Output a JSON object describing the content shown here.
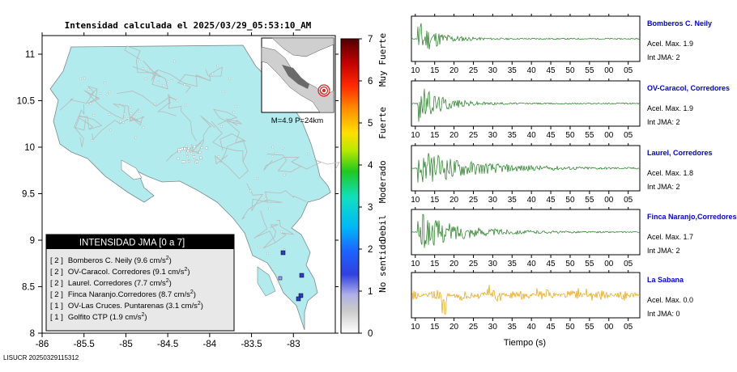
{
  "map": {
    "title": "Intensidad calculada el 2025/03/29_05:53:10_AM",
    "x_ticks": [
      "-86",
      "-85.5",
      "-85",
      "-84.5",
      "-84",
      "-83.5",
      "-83"
    ],
    "x_tick_values": [
      -86,
      -85.5,
      -85,
      -84.5,
      -84,
      -83.5,
      -83
    ],
    "y_ticks": [
      "11",
      "10.5",
      "10",
      "9.5",
      "9",
      "8.5",
      "8"
    ],
    "y_tick_values": [
      11,
      10.5,
      10,
      9.5,
      9,
      8.5,
      8
    ],
    "xlim": [
      -86,
      -82.5
    ],
    "ylim": [
      8,
      11.2
    ],
    "inset_caption": "M=4.9 P=24km",
    "land_color": "#b2ebed",
    "footer": "LISUCR 20250329115312"
  },
  "colorbar": {
    "ticks": [
      "0",
      "1",
      "2",
      "3",
      "4",
      "5",
      "6",
      "7"
    ],
    "categories": [
      "No sentido",
      "Debil",
      "Moderado",
      "Fuerte",
      "Muy Fuerte"
    ]
  },
  "legend": {
    "title": "INTENSIDAD JMA [0 a 7]",
    "items": [
      {
        "level": "[ 2 ]",
        "text": "Bomberos C. Neily (9.6 cm/s",
        "unit_sup": "2",
        "close": ")"
      },
      {
        "level": "[ 2 ]",
        "text": "OV-Caracol. Corredores (9.1 cm/s",
        "unit_sup": "2",
        "close": ")"
      },
      {
        "level": "[ 2 ]",
        "text": "Laurel. Corredores (7.7 cm/s",
        "unit_sup": "2",
        "close": ")"
      },
      {
        "level": "[ 2 ]",
        "text": "Finca Naranjo.Corredores (8.7 cm/s",
        "unit_sup": "2",
        "close": ")"
      },
      {
        "level": "[ 1 ]",
        "text": "OV-Las Cruces. Puntarenas (3.1 cm/s",
        "unit_sup": "2",
        "close": ")"
      },
      {
        "level": "[ 1 ]",
        "text": "Golfito CTP (1.9 cm/s",
        "unit_sup": "2",
        "close": ")"
      }
    ]
  },
  "chart_data": {
    "type": "line",
    "xlabel": "Tiempo (s)",
    "x_ticks": [
      "10",
      "15",
      "20",
      "25",
      "30",
      "35",
      "40",
      "45",
      "50",
      "55",
      "00",
      "05"
    ],
    "x_tick_values": [
      10,
      15,
      20,
      25,
      30,
      35,
      40,
      45,
      50,
      55,
      60,
      65
    ],
    "xlim": [
      9,
      68
    ],
    "series": [
      {
        "name": "Bomberos C. Neily",
        "acel": "Acel. Max. 1.9",
        "int": "Int JMA: 2",
        "color": "#1e7a1e",
        "onset": 10.5,
        "peak": 1.0,
        "decay": 5
      },
      {
        "name": "OV-Caracol, Corredores",
        "acel": "Acel. Max. 1.9",
        "int": "Int JMA: 2",
        "color": "#1e7a1e",
        "onset": 10.5,
        "peak": 1.0,
        "decay": 6
      },
      {
        "name": "Laurel, Corredores",
        "acel": "Acel. Max. 1.8",
        "int": "Int JMA: 2",
        "color": "#1e7a1e",
        "onset": 10.5,
        "peak": 0.9,
        "decay": 14
      },
      {
        "name": "Finca Naranjo,Corredores",
        "acel": "Acel. Max. 1.7",
        "int": "Int JMA: 2",
        "color": "#1e7a1e",
        "onset": 10.5,
        "peak": 1.0,
        "decay": 10
      },
      {
        "name": "La Sabana",
        "acel": "Acel. Max. 0.0",
        "int": "Int JMA: 0",
        "color": "#f0a000",
        "onset": 9,
        "peak": 1.0,
        "decay": 0
      }
    ]
  }
}
